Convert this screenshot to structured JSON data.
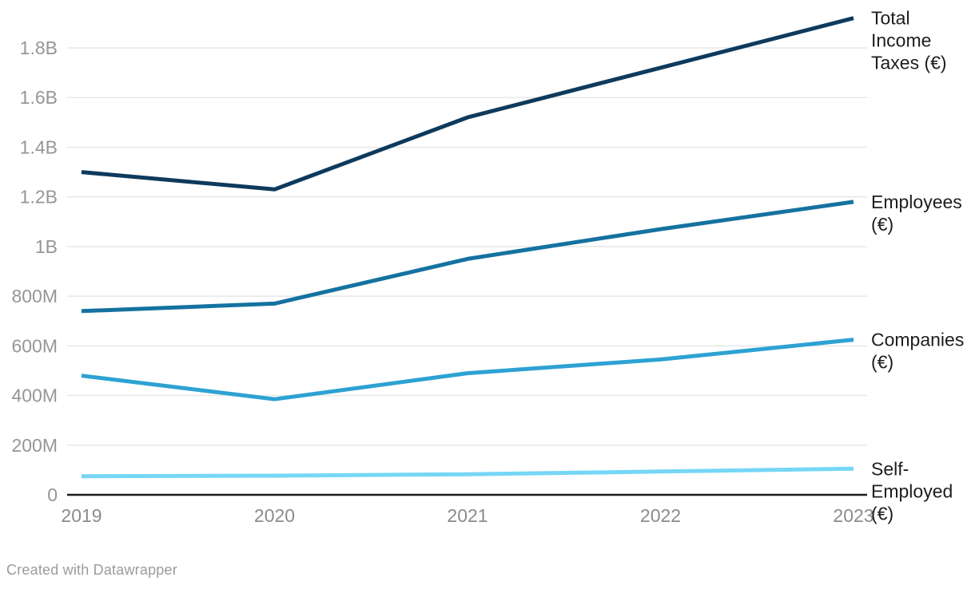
{
  "footer": {
    "credit": "Created with Datawrapper"
  },
  "colors": {
    "background": "#ffffff",
    "grid": "#e7e7e7",
    "axis": "#1a1a1a",
    "y_tick_label": "#969696",
    "x_tick_label": "#8b8b8b",
    "series_label": "#1d1d1d",
    "footer_text": "#9b9b9b"
  },
  "chart_data": {
    "type": "line",
    "title": "",
    "xlabel": "",
    "ylabel": "",
    "x": [
      "2019",
      "2020",
      "2021",
      "2022",
      "2023"
    ],
    "values_unit": "EUR, millions",
    "grid": true,
    "legend_position": "labels-at-line-ends-right",
    "ylim_M": [
      0,
      1940
    ],
    "y_ticks": [
      {
        "label": "1.8B",
        "value_M": 1800
      },
      {
        "label": "1.6B",
        "value_M": 1600
      },
      {
        "label": "1.4B",
        "value_M": 1400
      },
      {
        "label": "1.2B",
        "value_M": 1200
      },
      {
        "label": "1B",
        "value_M": 1000
      },
      {
        "label": "800M",
        "value_M": 800
      },
      {
        "label": "600M",
        "value_M": 600
      },
      {
        "label": "400M",
        "value_M": 400
      },
      {
        "label": "200M",
        "value_M": 200
      },
      {
        "label": "0",
        "value_M": 0
      }
    ],
    "series": [
      {
        "id": "total-income-taxes",
        "name": "Total Income Taxes (€)",
        "label_lines": [
          "Total",
          "Income",
          "Taxes (€)"
        ],
        "color": "#0d3a5d",
        "values_M": [
          1300,
          1230,
          1520,
          1720,
          1920
        ]
      },
      {
        "id": "employees",
        "name": "Employees (€)",
        "label_lines": [
          "Employees",
          "(€)"
        ],
        "color": "#1572a0",
        "values_M": [
          740,
          770,
          950,
          1070,
          1180
        ]
      },
      {
        "id": "companies",
        "name": "Companies (€)",
        "label_lines": [
          "Companies",
          "(€)"
        ],
        "color": "#2da2d3",
        "values_M": [
          480,
          385,
          490,
          545,
          625
        ]
      },
      {
        "id": "self-employed",
        "name": "Self-Employed (€)",
        "label_lines": [
          "Self-",
          "Employed",
          "(€)"
        ],
        "color": "#76d6f6",
        "values_M": [
          75,
          77,
          83,
          94,
          105
        ]
      }
    ]
  }
}
